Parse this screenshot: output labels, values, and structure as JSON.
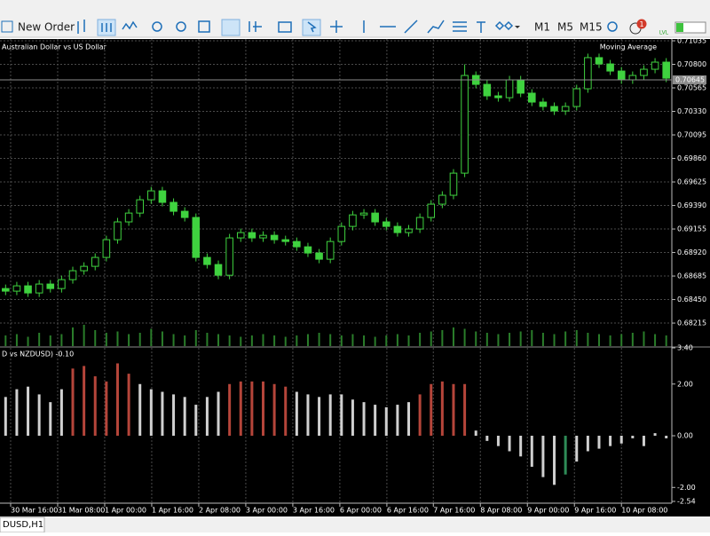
{
  "toolbar": {
    "new_order": "New Order",
    "timeframes": [
      "M1",
      "M5",
      "M15"
    ],
    "badge": "1",
    "lvl": "LVL"
  },
  "tab": "DUSD,H1",
  "chart_data": [
    {
      "type": "candlestick",
      "title": "Australian Dollar vs US Dollar",
      "indicator": "Moving Average",
      "color": "#3fd23f",
      "volume_color": "#2a7d2a",
      "grid": true,
      "open": [
        0.6856,
        0.68534,
        0.68587,
        0.68516,
        0.68605,
        0.6856,
        0.68649,
        0.68738,
        0.68782,
        0.68871,
        0.69048,
        0.69226,
        0.69314,
        0.69447,
        0.69536,
        0.69421,
        0.69332,
        0.6927,
        0.68871,
        0.688,
        0.68693,
        0.69066,
        0.69119,
        0.69066,
        0.69092,
        0.69048,
        0.6903,
        0.68977,
        0.68915,
        0.68853,
        0.6903,
        0.69181,
        0.69296,
        0.69314,
        0.69226,
        0.69181,
        0.69119,
        0.69155,
        0.6927,
        0.69403,
        0.69492,
        0.69713,
        0.70689,
        0.706,
        0.70485,
        0.70467,
        0.70645,
        0.70512,
        0.70423,
        0.70379,
        0.70334,
        0.70379,
        0.70556,
        0.70867,
        0.70804,
        0.70733,
        0.70645,
        0.70689,
        0.70751,
        0.70822
      ],
      "high": [
        0.686,
        0.68627,
        0.68627,
        0.68645,
        0.68645,
        0.68689,
        0.68778,
        0.68822,
        0.68911,
        0.69088,
        0.69266,
        0.69354,
        0.69487,
        0.69576,
        0.69576,
        0.69461,
        0.69372,
        0.6931,
        0.68911,
        0.6884,
        0.69106,
        0.69159,
        0.69159,
        0.69132,
        0.69132,
        0.69088,
        0.6907,
        0.69017,
        0.68955,
        0.6907,
        0.69221,
        0.69336,
        0.69354,
        0.69354,
        0.69266,
        0.69221,
        0.69195,
        0.6931,
        0.69443,
        0.69532,
        0.69753,
        0.708,
        0.70729,
        0.7064,
        0.70525,
        0.70685,
        0.70685,
        0.70552,
        0.70463,
        0.70419,
        0.70419,
        0.70596,
        0.70907,
        0.70907,
        0.70844,
        0.70773,
        0.70729,
        0.70791,
        0.70862,
        0.70862
      ],
      "low": [
        0.68494,
        0.68494,
        0.68476,
        0.68476,
        0.6852,
        0.6852,
        0.68609,
        0.68698,
        0.68742,
        0.68831,
        0.69008,
        0.69186,
        0.69274,
        0.69407,
        0.69381,
        0.69292,
        0.6923,
        0.68831,
        0.6876,
        0.68653,
        0.68653,
        0.69026,
        0.69026,
        0.69026,
        0.69008,
        0.6899,
        0.68937,
        0.68875,
        0.68813,
        0.68813,
        0.6899,
        0.69141,
        0.69256,
        0.69186,
        0.69141,
        0.69079,
        0.69079,
        0.69115,
        0.6923,
        0.69363,
        0.69452,
        0.69673,
        0.7056,
        0.70445,
        0.70427,
        0.70427,
        0.70472,
        0.70383,
        0.70339,
        0.70294,
        0.70294,
        0.70339,
        0.70516,
        0.70764,
        0.70693,
        0.70605,
        0.70605,
        0.70649,
        0.70711,
        0.70622
      ],
      "close": [
        0.68534,
        0.68587,
        0.68516,
        0.68605,
        0.6856,
        0.68649,
        0.68738,
        0.68782,
        0.68871,
        0.69048,
        0.69226,
        0.69314,
        0.69447,
        0.69536,
        0.69421,
        0.69332,
        0.6927,
        0.68871,
        0.688,
        0.68693,
        0.69066,
        0.69119,
        0.69066,
        0.69092,
        0.69048,
        0.6903,
        0.68977,
        0.68915,
        0.68853,
        0.6903,
        0.69181,
        0.69296,
        0.69314,
        0.69226,
        0.69181,
        0.69119,
        0.69155,
        0.6927,
        0.69403,
        0.69492,
        0.69713,
        0.70689,
        0.706,
        0.70485,
        0.70467,
        0.70645,
        0.70512,
        0.70423,
        0.70379,
        0.70334,
        0.70379,
        0.70556,
        0.70867,
        0.70804,
        0.70733,
        0.70645,
        0.70689,
        0.70751,
        0.70822,
        0.70662
      ],
      "volume": [
        8,
        9,
        7,
        10,
        8,
        9,
        14,
        16,
        12,
        10,
        11,
        9,
        10,
        13,
        11,
        9,
        8,
        12,
        10,
        9,
        8,
        7,
        8,
        9,
        8,
        7,
        8,
        9,
        10,
        9,
        8,
        9,
        8,
        7,
        8,
        9,
        8,
        10,
        11,
        12,
        14,
        13,
        11,
        10,
        9,
        10,
        11,
        12,
        10,
        9,
        11,
        12,
        10,
        9,
        8,
        9,
        10,
        11,
        9,
        8
      ],
      "current_price": 0.70645,
      "ylim": [
        0.67985,
        0.71035
      ],
      "yticks": [
        {
          "value": 0.71035,
          "label": "0.71035"
        },
        {
          "value": 0.708,
          "label": "0.70800"
        },
        {
          "value": 0.70565,
          "label": "0.70565"
        },
        {
          "value": 0.7033,
          "label": "0.70330"
        },
        {
          "value": 0.70095,
          "label": "0.70095"
        },
        {
          "value": 0.6986,
          "label": "0.69860"
        },
        {
          "value": 0.69625,
          "label": "0.69625"
        },
        {
          "value": 0.6939,
          "label": "0.69390"
        },
        {
          "value": 0.69155,
          "label": "0.69155"
        },
        {
          "value": 0.6892,
          "label": "0.68920"
        },
        {
          "value": 0.68685,
          "label": "0.68685"
        },
        {
          "value": 0.6845,
          "label": "0.68450"
        },
        {
          "value": 0.68215,
          "label": "0.68215"
        }
      ]
    },
    {
      "type": "bar",
      "title": "D vs NZDUSD) -0.10",
      "grid": true,
      "values": [
        1.5,
        1.8,
        1.9,
        1.6,
        1.3,
        1.8,
        2.6,
        2.7,
        2.3,
        2.1,
        2.8,
        2.4,
        2.0,
        1.8,
        1.7,
        1.6,
        1.5,
        1.2,
        1.5,
        1.7,
        2.0,
        2.1,
        2.1,
        2.1,
        2.0,
        1.9,
        1.7,
        1.6,
        1.5,
        1.6,
        1.6,
        1.4,
        1.3,
        1.2,
        1.1,
        1.2,
        1.3,
        1.6,
        2.0,
        2.1,
        2.0,
        2.0,
        0.2,
        -0.2,
        -0.4,
        -0.6,
        -0.8,
        -1.2,
        -1.6,
        -1.9,
        -1.5,
        -1.0,
        -0.6,
        -0.5,
        -0.4,
        -0.3,
        -0.1,
        -0.4,
        0.1,
        -0.1
      ],
      "colors": [
        "#d0d0d0",
        "#d0d0d0",
        "#d0d0d0",
        "#d0d0d0",
        "#d0d0d0",
        "#d0d0d0",
        "#b5453a",
        "#b5453a",
        "#b5453a",
        "#b5453a",
        "#b5453a",
        "#b5453a",
        "#d0d0d0",
        "#d0d0d0",
        "#d0d0d0",
        "#d0d0d0",
        "#d0d0d0",
        "#d0d0d0",
        "#d0d0d0",
        "#d0d0d0",
        "#b5453a",
        "#b5453a",
        "#b5453a",
        "#b5453a",
        "#b5453a",
        "#b5453a",
        "#d0d0d0",
        "#d0d0d0",
        "#d0d0d0",
        "#d0d0d0",
        "#d0d0d0",
        "#d0d0d0",
        "#d0d0d0",
        "#d0d0d0",
        "#d0d0d0",
        "#d0d0d0",
        "#d0d0d0",
        "#b5453a",
        "#b5453a",
        "#b5453a",
        "#b5453a",
        "#b5453a",
        "#d0d0d0",
        "#d0d0d0",
        "#d0d0d0",
        "#d0d0d0",
        "#d0d0d0",
        "#d0d0d0",
        "#d0d0d0",
        "#d0d0d0",
        "#2e8b57",
        "#d0d0d0",
        "#d0d0d0",
        "#d0d0d0",
        "#d0d0d0",
        "#d0d0d0",
        "#d0d0d0",
        "#d0d0d0",
        "#d0d0d0",
        "#d0d0d0"
      ],
      "ylim": [
        -2.54,
        3.4
      ],
      "yticks": [
        {
          "value": 3.4,
          "label": "3.40"
        },
        {
          "value": 2,
          "label": "2.00"
        },
        {
          "value": 0,
          "label": "0.00"
        },
        {
          "value": -2,
          "label": "-2.00"
        },
        {
          "value": -2.54,
          "label": "-2.54"
        }
      ],
      "xticks": [
        {
          "value": 0.95,
          "label": "30 Mar 16:00"
        },
        {
          "value": 5.15,
          "label": "31 Mar 08:00"
        },
        {
          "value": 9.35,
          "label": "1 Apr 00:00"
        },
        {
          "value": 13.55,
          "label": "1 Apr 16:00"
        },
        {
          "value": 17.75,
          "label": "2 Apr 08:00"
        },
        {
          "value": 21.95,
          "label": "3 Apr 00:00"
        },
        {
          "value": 26.15,
          "label": "3 Apr 16:00"
        },
        {
          "value": 30.35,
          "label": "6 Apr 00:00"
        },
        {
          "value": 34.55,
          "label": "6 Apr 16:00"
        },
        {
          "value": 38.7,
          "label": "7 Apr 16:00"
        },
        {
          "value": 42.9,
          "label": "8 Apr 08:00"
        },
        {
          "value": 47.1,
          "label": "9 Apr 00:00"
        },
        {
          "value": 51.3,
          "label": "9 Apr 16:00"
        },
        {
          "value": 55.5,
          "label": "10 Apr 08:00"
        }
      ]
    }
  ]
}
